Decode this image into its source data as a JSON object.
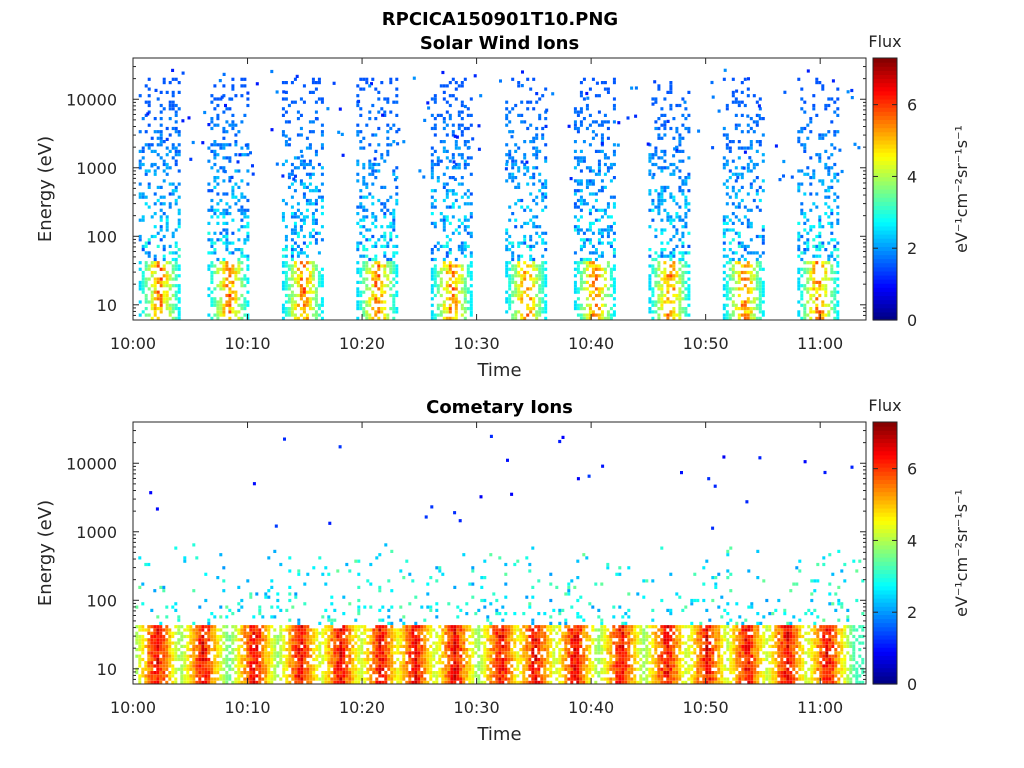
{
  "figure_title": "RPCICA150901T10.PNG",
  "chart_data": [
    {
      "type": "heatmap",
      "title": "Solar Wind Ions",
      "xlabel": "Time",
      "ylabel": "Energy (eV)",
      "x_range": [
        "10:00",
        "11:04"
      ],
      "x_ticks": [
        "10:00",
        "10:10",
        "10:20",
        "10:30",
        "10:40",
        "10:50",
        "11:00"
      ],
      "y_scale": "log",
      "y_range": [
        6,
        40000
      ],
      "y_ticks": [
        "10",
        "100",
        "1000",
        "10000"
      ],
      "colorbar": {
        "title": "Flux",
        "label": "eV⁻¹cm⁻²sr⁻¹s⁻¹",
        "range": [
          0,
          7.3
        ],
        "ticks": [
          "0",
          "2",
          "4",
          "6"
        ]
      },
      "bursts_start_minutes": [
        0.5,
        6.5,
        13.0,
        19.5,
        26.0,
        32.5,
        38.5,
        45.0,
        51.5,
        58.0
      ],
      "burst_duration_minutes": 3.5,
      "core": {
        "energy_range_eV": [
          8,
          40
        ],
        "flux_peak": 6.3
      },
      "tail": {
        "energy_range_eV": [
          40,
          20000
        ],
        "flux_range": [
          1.5,
          3.2
        ]
      }
    },
    {
      "type": "heatmap",
      "title": "Cometary Ions",
      "xlabel": "Time",
      "ylabel": "Energy (eV)",
      "x_range": [
        "10:00",
        "11:04"
      ],
      "x_ticks": [
        "10:00",
        "10:10",
        "10:20",
        "10:30",
        "10:40",
        "10:50",
        "11:00"
      ],
      "y_scale": "log",
      "y_range": [
        6,
        40000
      ],
      "y_ticks": [
        "10",
        "100",
        "1000",
        "10000"
      ],
      "colorbar": {
        "title": "Flux",
        "label": "eV⁻¹cm⁻²sr⁻¹s⁻¹",
        "range": [
          0,
          7.3
        ],
        "ticks": [
          "0",
          "2",
          "4",
          "6"
        ]
      },
      "bursts_start_minutes": [
        0.5,
        4.5,
        9.0,
        13.0,
        16.5,
        20.0,
        23.0,
        26.5,
        30.5,
        33.5,
        37.0,
        41.0,
        45.0,
        48.5,
        52.0,
        55.5,
        59.0
      ],
      "core": {
        "energy_range_eV": [
          7,
          40
        ],
        "flux_peak": 7.0
      },
      "tail": {
        "energy_range_eV": [
          40,
          800
        ],
        "flux_range": [
          2.0,
          3.5
        ]
      }
    }
  ]
}
